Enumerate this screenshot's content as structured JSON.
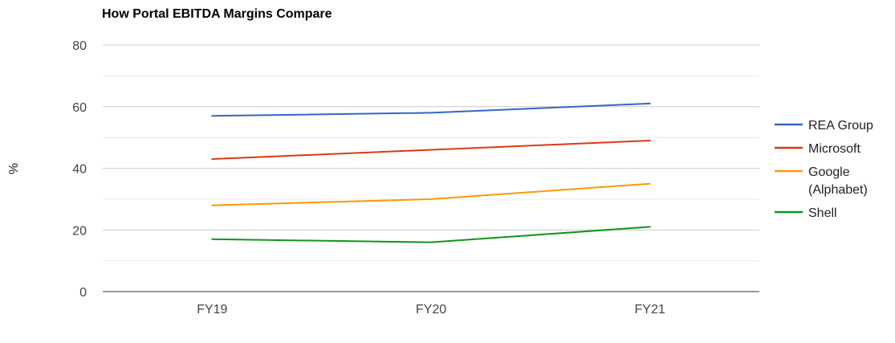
{
  "chart_data": {
    "type": "line",
    "title": "How Portal EBITDA Margins Compare",
    "xlabel": "",
    "ylabel": "%",
    "categories": [
      "FY19",
      "FY20",
      "FY21"
    ],
    "ylim": [
      0,
      80
    ],
    "yticks": [
      0,
      20,
      40,
      60,
      80
    ],
    "grid": true,
    "legend_position": "right",
    "series": [
      {
        "name": "REA Group",
        "color": "#3366cc",
        "values": [
          57,
          58,
          61
        ]
      },
      {
        "name": "Microsoft",
        "color": "#dc3912",
        "values": [
          43,
          46,
          49
        ]
      },
      {
        "name": "Google (Alphabet)",
        "legend_lines": [
          "Google",
          "(Alphabet)"
        ],
        "color": "#ff9900",
        "values": [
          28,
          30,
          35
        ]
      },
      {
        "name": "Shell",
        "color": "#109618",
        "values": [
          17,
          16,
          21
        ]
      }
    ]
  }
}
